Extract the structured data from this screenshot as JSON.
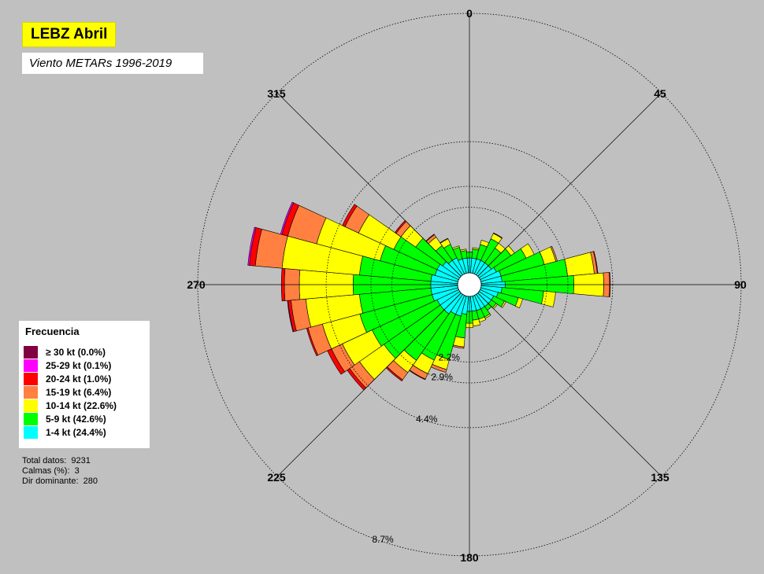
{
  "title": "LEBZ Abril",
  "subtitle": "Viento METARs 1996-2019",
  "legend": {
    "title": "Frecuencia",
    "items": [
      {
        "label": "≥ 30  kt (0.0%)",
        "color": "#800040"
      },
      {
        "label": "25-29 kt (0.1%)",
        "color": "#ff00ff"
      },
      {
        "label": "20-24 kt (1.0%)",
        "color": "#ff0000"
      },
      {
        "label": "15-19 kt (6.4%)",
        "color": "#ff8040"
      },
      {
        "label": "10-14 kt (22.6%)",
        "color": "#ffff00"
      },
      {
        "label": "5-9 kt (42.6%)",
        "color": "#00ff00"
      },
      {
        "label": "1-4 kt (24.4%)",
        "color": "#00ffff"
      }
    ]
  },
  "stats": [
    {
      "label": "Total datos:",
      "value": "9231"
    },
    {
      "label": "Calmas (%):",
      "value": "3"
    },
    {
      "label": "Dir dominante:",
      "value": "280"
    }
  ],
  "chart_data": {
    "type": "polar-bar",
    "rings": [
      {
        "value": 2.2,
        "label": "2.2%"
      },
      {
        "value": 2.9,
        "label": "2.9%"
      },
      {
        "value": 4.4,
        "label": "4.4%"
      },
      {
        "value": 8.7,
        "label": "8.7%"
      }
    ],
    "direction_labels": [
      "0",
      "45",
      "90",
      "135",
      "180",
      "225",
      "270",
      "315"
    ],
    "sector_width_deg": 10,
    "categories": [
      "1-4 kt",
      "5-9 kt",
      "10-14 kt",
      "15-19 kt",
      "20-24 kt",
      "25-29 kt",
      "≥ 30 kt"
    ],
    "colors": [
      "#00ffff",
      "#00ff00",
      "#ffff00",
      "#ff8040",
      "#ff0000",
      "#ff00ff",
      "#800040"
    ],
    "sectors": [
      {
        "dir": 0,
        "values": [
          0.5,
          0.2,
          0.0,
          0.0,
          0.0,
          0.0,
          0.0
        ]
      },
      {
        "dir": 10,
        "values": [
          0.5,
          0.3,
          0.05,
          0.0,
          0.0,
          0.0,
          0.0
        ]
      },
      {
        "dir": 20,
        "values": [
          0.5,
          0.5,
          0.15,
          0.0,
          0.0,
          0.0,
          0.0
        ]
      },
      {
        "dir": 30,
        "values": [
          0.5,
          0.8,
          0.2,
          0.02,
          0.0,
          0.0,
          0.0
        ]
      },
      {
        "dir": 40,
        "values": [
          0.5,
          0.6,
          0.2,
          0.0,
          0.0,
          0.0,
          0.0
        ]
      },
      {
        "dir": 50,
        "values": [
          0.5,
          0.8,
          0.15,
          0.0,
          0.0,
          0.0,
          0.0
        ]
      },
      {
        "dir": 60,
        "values": [
          0.6,
          1.1,
          0.3,
          0.0,
          0.0,
          0.0,
          0.0
        ]
      },
      {
        "dir": 70,
        "values": [
          0.7,
          1.5,
          0.4,
          0.05,
          0.0,
          0.0,
          0.0
        ]
      },
      {
        "dir": 80,
        "values": [
          0.7,
          2.2,
          0.9,
          0.1,
          0.02,
          0.0,
          0.0
        ]
      },
      {
        "dir": 90,
        "values": [
          0.8,
          2.3,
          1.0,
          0.2,
          0.02,
          0.0,
          0.0
        ]
      },
      {
        "dir": 100,
        "values": [
          0.7,
          1.4,
          0.4,
          0.0,
          0.0,
          0.0,
          0.0
        ]
      },
      {
        "dir": 110,
        "values": [
          0.6,
          0.7,
          0.15,
          0.0,
          0.0,
          0.0,
          0.0
        ]
      },
      {
        "dir": 120,
        "values": [
          0.5,
          0.4,
          0.05,
          0.0,
          0.0,
          0.0,
          0.0
        ]
      },
      {
        "dir": 130,
        "values": [
          0.5,
          0.2,
          0.05,
          0.0,
          0.0,
          0.0,
          0.0
        ]
      },
      {
        "dir": 140,
        "values": [
          0.5,
          0.15,
          0.0,
          0.0,
          0.0,
          0.0,
          0.0
        ]
      },
      {
        "dir": 150,
        "values": [
          0.5,
          0.3,
          0.05,
          0.0,
          0.0,
          0.0,
          0.0
        ]
      },
      {
        "dir": 160,
        "values": [
          0.5,
          0.3,
          0.1,
          0.0,
          0.0,
          0.0,
          0.0
        ]
      },
      {
        "dir": 170,
        "values": [
          0.5,
          0.3,
          0.2,
          0.0,
          0.0,
          0.0,
          0.0
        ]
      },
      {
        "dir": 180,
        "values": [
          0.5,
          0.4,
          0.15,
          0.0,
          0.0,
          0.0,
          0.0
        ]
      },
      {
        "dir": 190,
        "values": [
          0.6,
          0.8,
          0.3,
          0.05,
          0.0,
          0.0,
          0.0
        ]
      },
      {
        "dir": 200,
        "values": [
          0.7,
          1.5,
          0.35,
          0.1,
          0.0,
          0.0,
          0.0
        ]
      },
      {
        "dir": 210,
        "values": [
          0.7,
          1.7,
          0.5,
          0.2,
          0.02,
          0.0,
          0.0
        ]
      },
      {
        "dir": 220,
        "values": [
          0.8,
          1.9,
          0.5,
          0.3,
          0.05,
          0.0,
          0.0
        ]
      },
      {
        "dir": 230,
        "values": [
          0.8,
          2.3,
          1.0,
          0.4,
          0.1,
          0.0,
          0.0
        ]
      },
      {
        "dir": 240,
        "values": [
          0.8,
          2.4,
          1.1,
          0.4,
          0.15,
          0.0,
          0.0
        ]
      },
      {
        "dir": 250,
        "values": [
          0.9,
          2.5,
          1.3,
          0.5,
          0.05,
          0.0,
          0.0
        ]
      },
      {
        "dir": 260,
        "values": [
          0.9,
          2.4,
          1.8,
          0.5,
          0.1,
          0.02,
          0.0
        ]
      },
      {
        "dir": 270,
        "values": [
          0.9,
          2.6,
          1.8,
          0.5,
          0.1,
          0.0,
          0.0
        ]
      },
      {
        "dir": 280,
        "values": [
          0.9,
          2.4,
          2.6,
          0.9,
          0.2,
          0.05,
          0.0
        ]
      },
      {
        "dir": 290,
        "values": [
          0.8,
          1.9,
          2.2,
          1.0,
          0.2,
          0.05,
          0.0
        ]
      },
      {
        "dir": 300,
        "values": [
          0.8,
          1.6,
          1.3,
          0.5,
          0.1,
          0.0,
          0.0
        ]
      },
      {
        "dir": 310,
        "values": [
          0.7,
          1.1,
          0.6,
          0.2,
          0.05,
          0.0,
          0.0
        ]
      },
      {
        "dir": 320,
        "values": [
          0.6,
          0.6,
          0.35,
          0.1,
          0.02,
          0.0,
          0.0
        ]
      },
      {
        "dir": 330,
        "values": [
          0.6,
          0.5,
          0.2,
          0.02,
          0.0,
          0.0,
          0.0
        ]
      },
      {
        "dir": 340,
        "values": [
          0.5,
          0.4,
          0.05,
          0.0,
          0.0,
          0.0,
          0.0
        ]
      },
      {
        "dir": 350,
        "values": [
          0.5,
          0.25,
          0.05,
          0.0,
          0.0,
          0.0,
          0.0
        ]
      }
    ]
  }
}
